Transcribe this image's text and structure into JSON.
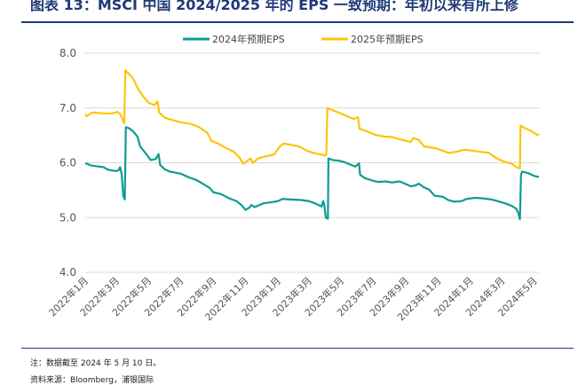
{
  "header": {
    "figure_title": "图表 13：MSCI 中国 2024/2025 年的 EPS 一致预期：年初以来有所上修"
  },
  "footer": {
    "note": "注：数据截至 2024 年 5 月 10 日。",
    "source": "资料来源：Bloomberg，浦银国际"
  },
  "chart_data": {
    "type": "line",
    "title": "",
    "xlabel": "",
    "ylabel": "",
    "ylim": [
      4.0,
      8.0
    ],
    "yticks": [
      "4.0",
      "5.0",
      "6.0",
      "7.0",
      "8.0"
    ],
    "grid": "horizontal",
    "legend_position": "top-center",
    "x_range": [
      "2022-01-01",
      "2024-05-10"
    ],
    "x_tick_labels": [
      "2022年1月",
      "2022年3月",
      "2022年5月",
      "2022年7月",
      "2022年9月",
      "2022年11月",
      "2023年1月",
      "2023年3月",
      "2023年5月",
      "2023年7月",
      "2023年9月",
      "2023年11月",
      "2024年1月",
      "2024年3月",
      "2024年5月"
    ],
    "series": [
      {
        "name": "2024年预期EPS",
        "color": "#0e9b93",
        "points": [
          [
            "2022-01-01",
            5.99
          ],
          [
            "2022-01-05",
            5.98
          ],
          [
            "2022-01-12",
            5.95
          ],
          [
            "2022-01-20",
            5.94
          ],
          [
            "2022-01-28",
            5.93
          ],
          [
            "2022-02-05",
            5.92
          ],
          [
            "2022-02-12",
            5.88
          ],
          [
            "2022-02-20",
            5.86
          ],
          [
            "2022-02-28",
            5.85
          ],
          [
            "2022-03-05",
            5.86
          ],
          [
            "2022-03-08",
            5.92
          ],
          [
            "2022-03-11",
            5.8
          ],
          [
            "2022-03-14",
            5.4
          ],
          [
            "2022-03-17",
            5.33
          ],
          [
            "2022-03-19",
            6.65
          ],
          [
            "2022-03-25",
            6.63
          ],
          [
            "2022-04-01",
            6.58
          ],
          [
            "2022-04-10",
            6.48
          ],
          [
            "2022-04-15",
            6.3
          ],
          [
            "2022-04-25",
            6.18
          ],
          [
            "2022-05-05",
            6.05
          ],
          [
            "2022-05-15",
            6.07
          ],
          [
            "2022-05-20",
            6.16
          ],
          [
            "2022-05-23",
            5.96
          ],
          [
            "2022-06-01",
            5.88
          ],
          [
            "2022-06-10",
            5.84
          ],
          [
            "2022-06-20",
            5.82
          ],
          [
            "2022-07-01",
            5.8
          ],
          [
            "2022-07-15",
            5.74
          ],
          [
            "2022-08-01",
            5.68
          ],
          [
            "2022-08-15",
            5.6
          ],
          [
            "2022-08-25",
            5.54
          ],
          [
            "2022-09-01",
            5.46
          ],
          [
            "2022-09-15",
            5.43
          ],
          [
            "2022-10-01",
            5.35
          ],
          [
            "2022-10-15",
            5.3
          ],
          [
            "2022-10-25",
            5.22
          ],
          [
            "2022-11-01",
            5.14
          ],
          [
            "2022-11-08",
            5.18
          ],
          [
            "2022-11-12",
            5.23
          ],
          [
            "2022-11-18",
            5.19
          ],
          [
            "2022-11-25",
            5.22
          ],
          [
            "2022-12-05",
            5.26
          ],
          [
            "2022-12-20",
            5.28
          ],
          [
            "2023-01-01",
            5.3
          ],
          [
            "2023-01-10",
            5.34
          ],
          [
            "2023-01-25",
            5.33
          ],
          [
            "2023-02-15",
            5.32
          ],
          [
            "2023-03-01",
            5.3
          ],
          [
            "2023-03-15",
            5.25
          ],
          [
            "2023-03-25",
            5.2
          ],
          [
            "2023-03-28",
            5.3
          ],
          [
            "2023-03-30",
            5.24
          ],
          [
            "2023-04-02",
            5.0
          ],
          [
            "2023-04-06",
            4.98
          ],
          [
            "2023-04-07",
            6.08
          ],
          [
            "2023-04-15",
            6.05
          ],
          [
            "2023-04-25",
            6.04
          ],
          [
            "2023-05-05",
            6.02
          ],
          [
            "2023-05-15",
            5.98
          ],
          [
            "2023-05-28",
            5.93
          ],
          [
            "2023-06-04",
            5.99
          ],
          [
            "2023-06-06",
            5.78
          ],
          [
            "2023-06-15",
            5.72
          ],
          [
            "2023-06-28",
            5.68
          ],
          [
            "2023-07-10",
            5.65
          ],
          [
            "2023-07-25",
            5.66
          ],
          [
            "2023-08-05",
            5.64
          ],
          [
            "2023-08-20",
            5.66
          ],
          [
            "2023-09-01",
            5.61
          ],
          [
            "2023-09-10",
            5.57
          ],
          [
            "2023-09-20",
            5.59
          ],
          [
            "2023-09-25",
            5.62
          ],
          [
            "2023-10-05",
            5.55
          ],
          [
            "2023-10-15",
            5.51
          ],
          [
            "2023-10-25",
            5.4
          ],
          [
            "2023-11-10",
            5.38
          ],
          [
            "2023-11-20",
            5.32
          ],
          [
            "2023-12-01",
            5.29
          ],
          [
            "2023-12-15",
            5.3
          ],
          [
            "2023-12-25",
            5.34
          ],
          [
            "2024-01-10",
            5.36
          ],
          [
            "2024-01-25",
            5.35
          ],
          [
            "2024-02-10",
            5.33
          ],
          [
            "2024-02-25",
            5.29
          ],
          [
            "2024-03-10",
            5.25
          ],
          [
            "2024-03-20",
            5.21
          ],
          [
            "2024-03-28",
            5.16
          ],
          [
            "2024-04-01",
            5.08
          ],
          [
            "2024-04-04",
            4.97
          ],
          [
            "2024-04-06",
            5.78
          ],
          [
            "2024-04-08",
            5.84
          ],
          [
            "2024-04-20",
            5.81
          ],
          [
            "2024-05-01",
            5.76
          ],
          [
            "2024-05-10",
            5.74
          ]
        ]
      },
      {
        "name": "2025年预期EPS",
        "color": "#fcc50a",
        "points": [
          [
            "2022-01-01",
            6.89
          ],
          [
            "2022-01-04",
            6.85
          ],
          [
            "2022-01-08",
            6.88
          ],
          [
            "2022-01-15",
            6.92
          ],
          [
            "2022-01-25",
            6.91
          ],
          [
            "2022-02-05",
            6.9
          ],
          [
            "2022-02-15",
            6.9
          ],
          [
            "2022-02-25",
            6.91
          ],
          [
            "2022-03-03",
            6.93
          ],
          [
            "2022-03-09",
            6.88
          ],
          [
            "2022-03-13",
            6.79
          ],
          [
            "2022-03-16",
            6.72
          ],
          [
            "2022-03-18",
            7.69
          ],
          [
            "2022-03-25",
            7.62
          ],
          [
            "2022-04-01",
            7.55
          ],
          [
            "2022-04-10",
            7.37
          ],
          [
            "2022-04-20",
            7.22
          ],
          [
            "2022-05-01",
            7.1
          ],
          [
            "2022-05-12",
            7.05
          ],
          [
            "2022-05-18",
            7.12
          ],
          [
            "2022-05-21",
            6.92
          ],
          [
            "2022-06-01",
            6.82
          ],
          [
            "2022-06-15",
            6.78
          ],
          [
            "2022-07-01",
            6.74
          ],
          [
            "2022-07-20",
            6.71
          ],
          [
            "2022-08-05",
            6.65
          ],
          [
            "2022-08-20",
            6.55
          ],
          [
            "2022-08-28",
            6.4
          ],
          [
            "2022-09-10",
            6.35
          ],
          [
            "2022-09-25",
            6.27
          ],
          [
            "2022-10-10",
            6.2
          ],
          [
            "2022-10-20",
            6.1
          ],
          [
            "2022-10-28",
            5.98
          ],
          [
            "2022-11-05",
            6.04
          ],
          [
            "2022-11-10",
            6.08
          ],
          [
            "2022-11-15",
            6.0
          ],
          [
            "2022-11-25",
            6.08
          ],
          [
            "2022-12-10",
            6.12
          ],
          [
            "2022-12-25",
            6.15
          ],
          [
            "2023-01-05",
            6.3
          ],
          [
            "2023-01-12",
            6.35
          ],
          [
            "2023-01-25",
            6.33
          ],
          [
            "2023-02-10",
            6.3
          ],
          [
            "2023-02-25",
            6.22
          ],
          [
            "2023-03-10",
            6.18
          ],
          [
            "2023-03-25",
            6.15
          ],
          [
            "2023-04-01",
            6.13
          ],
          [
            "2023-04-03",
            6.15
          ],
          [
            "2023-04-05",
            7.0
          ],
          [
            "2023-04-15",
            6.96
          ],
          [
            "2023-04-25",
            6.92
          ],
          [
            "2023-05-10",
            6.86
          ],
          [
            "2023-05-25",
            6.8
          ],
          [
            "2023-06-02",
            6.83
          ],
          [
            "2023-06-05",
            6.62
          ],
          [
            "2023-06-20",
            6.57
          ],
          [
            "2023-07-05",
            6.51
          ],
          [
            "2023-07-20",
            6.48
          ],
          [
            "2023-08-05",
            6.47
          ],
          [
            "2023-08-20",
            6.43
          ],
          [
            "2023-09-01",
            6.4
          ],
          [
            "2023-09-10",
            6.38
          ],
          [
            "2023-09-15",
            6.45
          ],
          [
            "2023-09-25",
            6.42
          ],
          [
            "2023-10-05",
            6.3
          ],
          [
            "2023-10-25",
            6.27
          ],
          [
            "2023-11-10",
            6.22
          ],
          [
            "2023-11-20",
            6.18
          ],
          [
            "2023-12-05",
            6.2
          ],
          [
            "2023-12-20",
            6.24
          ],
          [
            "2024-01-05",
            6.22
          ],
          [
            "2024-01-20",
            6.2
          ],
          [
            "2024-02-05",
            6.18
          ],
          [
            "2024-02-20",
            6.08
          ],
          [
            "2024-03-05",
            6.02
          ],
          [
            "2024-03-20",
            5.98
          ],
          [
            "2024-03-28",
            5.92
          ],
          [
            "2024-04-04",
            5.9
          ],
          [
            "2024-04-05",
            6.68
          ],
          [
            "2024-04-12",
            6.64
          ],
          [
            "2024-04-25",
            6.58
          ],
          [
            "2024-05-05",
            6.52
          ],
          [
            "2024-05-10",
            6.5
          ]
        ]
      }
    ]
  }
}
